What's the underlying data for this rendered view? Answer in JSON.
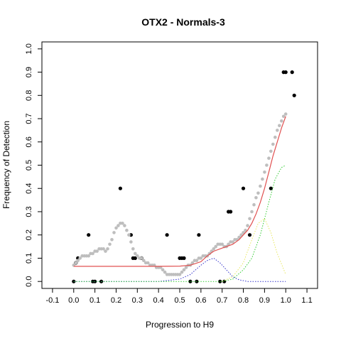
{
  "chart_data": {
    "type": "scatter",
    "title": "OTX2 - Normals-3",
    "xlabel": "Progression to H9",
    "ylabel": "Frequency of Detection",
    "xlim": [
      -0.15,
      1.15
    ],
    "ylim": [
      -0.03,
      1.03
    ],
    "x_ticks": [
      "-0.1",
      "0.0",
      "0.1",
      "0.2",
      "0.3",
      "0.4",
      "0.5",
      "0.6",
      "0.7",
      "0.8",
      "0.9",
      "1.0",
      "1.1"
    ],
    "y_ticks": [
      "0.0",
      "0.1",
      "0.2",
      "0.3",
      "0.4",
      "0.5",
      "0.6",
      "0.7",
      "0.8",
      "0.9",
      "1.0"
    ],
    "grid": false,
    "legend": "none",
    "series": [
      {
        "kind": "points",
        "color": "#000000",
        "x": [
          0.0,
          0.01,
          0.02,
          0.07,
          0.09,
          0.1,
          0.13,
          0.22,
          0.27,
          0.28,
          0.29,
          0.32,
          0.44,
          0.5,
          0.51,
          0.52,
          0.55,
          0.58,
          0.59,
          0.69,
          0.71,
          0.73,
          0.74,
          0.8,
          0.83,
          0.93,
          0.99,
          1.0,
          1.03,
          1.04
        ],
        "y": [
          0.0,
          0.08,
          0.1,
          0.2,
          0.0,
          0.0,
          0.0,
          0.4,
          0.2,
          0.1,
          0.1,
          0.1,
          0.2,
          0.1,
          0.1,
          0.1,
          0.0,
          0.0,
          0.2,
          0.0,
          0.0,
          0.3,
          0.3,
          0.4,
          0.2,
          0.4,
          0.9,
          0.9,
          0.9,
          0.8
        ]
      },
      {
        "kind": "points",
        "color": "#bebebe",
        "x": [
          0.0,
          0.01,
          0.02,
          0.03,
          0.04,
          0.05,
          0.06,
          0.07,
          0.08,
          0.09,
          0.1,
          0.11,
          0.12,
          0.13,
          0.14,
          0.15,
          0.16,
          0.17,
          0.18,
          0.19,
          0.2,
          0.21,
          0.22,
          0.23,
          0.24,
          0.25,
          0.26,
          0.27,
          0.28,
          0.29,
          0.3,
          0.31,
          0.32,
          0.33,
          0.34,
          0.35,
          0.36,
          0.37,
          0.38,
          0.39,
          0.4,
          0.41,
          0.42,
          0.43,
          0.44,
          0.45,
          0.46,
          0.47,
          0.48,
          0.49,
          0.5,
          0.51,
          0.52,
          0.53,
          0.54,
          0.55,
          0.56,
          0.57,
          0.58,
          0.59,
          0.6,
          0.61,
          0.62,
          0.63,
          0.64,
          0.65,
          0.66,
          0.67,
          0.68,
          0.69,
          0.7,
          0.71,
          0.72,
          0.73,
          0.74,
          0.75,
          0.76,
          0.77,
          0.78,
          0.79,
          0.8,
          0.81,
          0.82,
          0.83,
          0.84,
          0.85,
          0.86,
          0.87,
          0.88,
          0.89,
          0.9,
          0.91,
          0.92,
          0.93,
          0.94,
          0.95,
          0.96,
          0.97,
          0.98,
          0.99,
          1.0
        ],
        "y": [
          0.07,
          0.08,
          0.09,
          0.1,
          0.11,
          0.11,
          0.11,
          0.11,
          0.12,
          0.12,
          0.13,
          0.13,
          0.14,
          0.14,
          0.14,
          0.13,
          0.14,
          0.16,
          0.18,
          0.21,
          0.23,
          0.24,
          0.25,
          0.25,
          0.24,
          0.22,
          0.2,
          0.17,
          0.14,
          0.12,
          0.11,
          0.1,
          0.1,
          0.09,
          0.08,
          0.08,
          0.07,
          0.07,
          0.07,
          0.06,
          0.06,
          0.06,
          0.05,
          0.04,
          0.03,
          0.03,
          0.03,
          0.03,
          0.03,
          0.03,
          0.03,
          0.04,
          0.05,
          0.06,
          0.07,
          0.07,
          0.08,
          0.09,
          0.09,
          0.1,
          0.1,
          0.11,
          0.11,
          0.11,
          0.12,
          0.13,
          0.14,
          0.15,
          0.16,
          0.16,
          0.16,
          0.15,
          0.15,
          0.16,
          0.17,
          0.17,
          0.18,
          0.18,
          0.19,
          0.2,
          0.21,
          0.22,
          0.24,
          0.27,
          0.3,
          0.33,
          0.36,
          0.38,
          0.41,
          0.44,
          0.47,
          0.5,
          0.53,
          0.56,
          0.59,
          0.62,
          0.65,
          0.67,
          0.69,
          0.71,
          0.72
        ]
      },
      {
        "kind": "line",
        "color": "#e05050",
        "style": "solid",
        "x": [
          0.0,
          0.1,
          0.2,
          0.3,
          0.4,
          0.5,
          0.55,
          0.6,
          0.63,
          0.66,
          0.69,
          0.72,
          0.75,
          0.78,
          0.8,
          0.82,
          0.84,
          0.86,
          0.88,
          0.9,
          0.92,
          0.94,
          0.96,
          0.98,
          1.0
        ],
        "y": [
          0.065,
          0.065,
          0.065,
          0.065,
          0.065,
          0.066,
          0.07,
          0.085,
          0.11,
          0.13,
          0.14,
          0.15,
          0.16,
          0.18,
          0.2,
          0.22,
          0.25,
          0.29,
          0.34,
          0.4,
          0.47,
          0.54,
          0.6,
          0.66,
          0.71
        ]
      },
      {
        "kind": "line",
        "color": "#3333cc",
        "style": "dotted",
        "x": [
          0.0,
          0.4,
          0.5,
          0.55,
          0.6,
          0.63,
          0.66,
          0.69,
          0.72,
          0.75,
          0.78,
          0.82,
          1.0
        ],
        "y": [
          0.0,
          0.0,
          0.01,
          0.03,
          0.07,
          0.09,
          0.1,
          0.08,
          0.05,
          0.02,
          0.007,
          0.0,
          0.0
        ]
      },
      {
        "kind": "line",
        "color": "#e8e860",
        "style": "dotted",
        "x": [
          0.7,
          0.75,
          0.8,
          0.84,
          0.87,
          0.9,
          0.93,
          0.96,
          1.0
        ],
        "y": [
          0.0,
          0.02,
          0.08,
          0.18,
          0.25,
          0.27,
          0.21,
          0.12,
          0.03
        ]
      },
      {
        "kind": "line",
        "color": "#33cc33",
        "style": "dotted",
        "x": [
          0.0,
          0.7,
          0.75,
          0.8,
          0.84,
          0.88,
          0.92,
          0.95,
          0.98,
          1.0
        ],
        "y": [
          0.0,
          0.0,
          0.01,
          0.05,
          0.1,
          0.2,
          0.34,
          0.44,
          0.49,
          0.5
        ]
      }
    ]
  }
}
